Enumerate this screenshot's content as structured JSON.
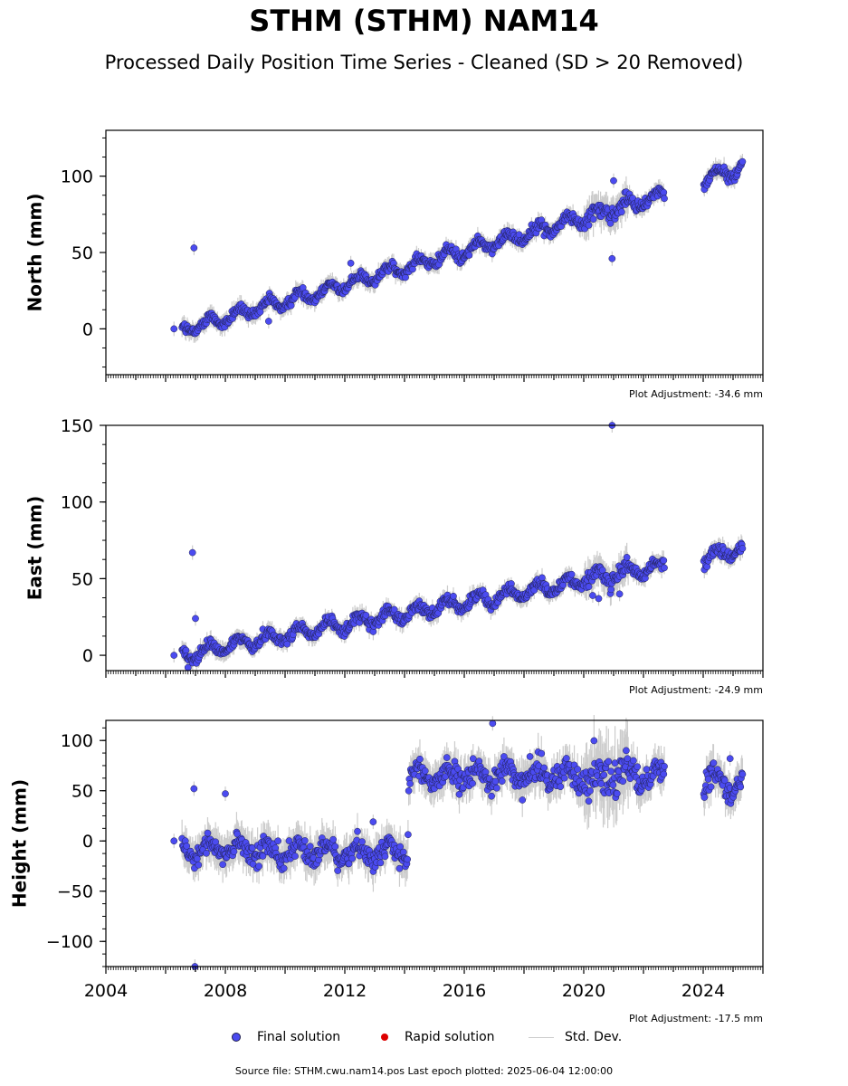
{
  "title": "STHM (STHM) NAM14",
  "subtitle": "Processed Daily Position Time Series - Cleaned (SD > 20 Removed)",
  "legend": {
    "final": "Final solution",
    "rapid": "Rapid solution",
    "std": "Std. Dev."
  },
  "footer": "Source file: STHM.cwu.nam14.pos  Last epoch plotted: 2025-06-04 12:00:00",
  "colors": {
    "final": "#4b4bf0",
    "final_edge": "#202050",
    "rapid": "#dd0000",
    "std": "#cccccc"
  },
  "chart_data": [
    {
      "type": "scatter",
      "component": "north",
      "ylabel": "North (mm)",
      "ylim": [
        -30,
        130
      ],
      "yticks": [
        0,
        50,
        100
      ],
      "xlim": [
        2004.0,
        2026.0
      ],
      "adjustment": "Plot Adjustment: -34.6 mm",
      "trend": {
        "x": [
          2006.7,
          2022.6,
          2024.0,
          2025.3
        ],
        "y": [
          0,
          87,
          97,
          106
        ]
      },
      "seasonal_amplitude": 4,
      "noise": 2.5,
      "outliers": [
        {
          "x": 2006.28,
          "y": 0
        },
        {
          "x": 2006.95,
          "y": 53
        },
        {
          "x": 2009.45,
          "y": 5
        },
        {
          "x": 2012.2,
          "y": 43
        },
        {
          "x": 2020.95,
          "y": 46
        },
        {
          "x": 2021.0,
          "y": 97
        }
      ],
      "gap": [
        2022.7,
        2024.0
      ]
    },
    {
      "type": "scatter",
      "component": "east",
      "ylabel": "East (mm)",
      "ylim": [
        -10,
        150
      ],
      "yticks": [
        0,
        50,
        100,
        150
      ],
      "xlim": [
        2004.0,
        2026.0
      ],
      "adjustment": "Plot Adjustment: -24.9 mm",
      "trend": {
        "x": [
          2006.7,
          2008.0,
          2022.6,
          2024.0,
          2025.3
        ],
        "y": [
          0,
          6,
          58,
          62,
          70
        ]
      },
      "seasonal_amplitude": 4,
      "noise": 2.5,
      "outliers": [
        {
          "x": 2006.28,
          "y": 0
        },
        {
          "x": 2006.9,
          "y": 67
        },
        {
          "x": 2007.0,
          "y": 24
        },
        {
          "x": 2006.75,
          "y": -8
        },
        {
          "x": 2020.95,
          "y": 150
        },
        {
          "x": 2020.3,
          "y": 39
        },
        {
          "x": 2020.5,
          "y": 37
        },
        {
          "x": 2021.2,
          "y": 40
        }
      ],
      "gap": [
        2022.7,
        2024.0
      ]
    },
    {
      "type": "scatter",
      "component": "height",
      "ylabel": "Height (mm)",
      "ylim": [
        -125,
        120
      ],
      "yticks": [
        -100,
        -50,
        0,
        50,
        100
      ],
      "xlim": [
        2004.0,
        2026.0
      ],
      "xticks": [
        2004,
        2008,
        2012,
        2016,
        2020,
        2024
      ],
      "adjustment": "Plot Adjustment: -17.5 mm",
      "trend": {
        "x": [
          2006.7,
          2014.1,
          2014.15,
          2022.6,
          2024.0,
          2025.3
        ],
        "y": [
          -8,
          -13,
          65,
          65,
          62,
          55
        ]
      },
      "seasonal_amplitude": 8,
      "noise": 8,
      "outliers": [
        {
          "x": 2006.28,
          "y": 0
        },
        {
          "x": 2006.95,
          "y": 52
        },
        {
          "x": 2006.98,
          "y": -125
        },
        {
          "x": 2008.0,
          "y": 47
        },
        {
          "x": 2012.95,
          "y": 19
        },
        {
          "x": 2016.95,
          "y": 117
        },
        {
          "x": 2018.2,
          "y": 84
        },
        {
          "x": 2024.9,
          "y": 82
        }
      ],
      "gap": [
        2022.7,
        2024.0
      ]
    }
  ]
}
